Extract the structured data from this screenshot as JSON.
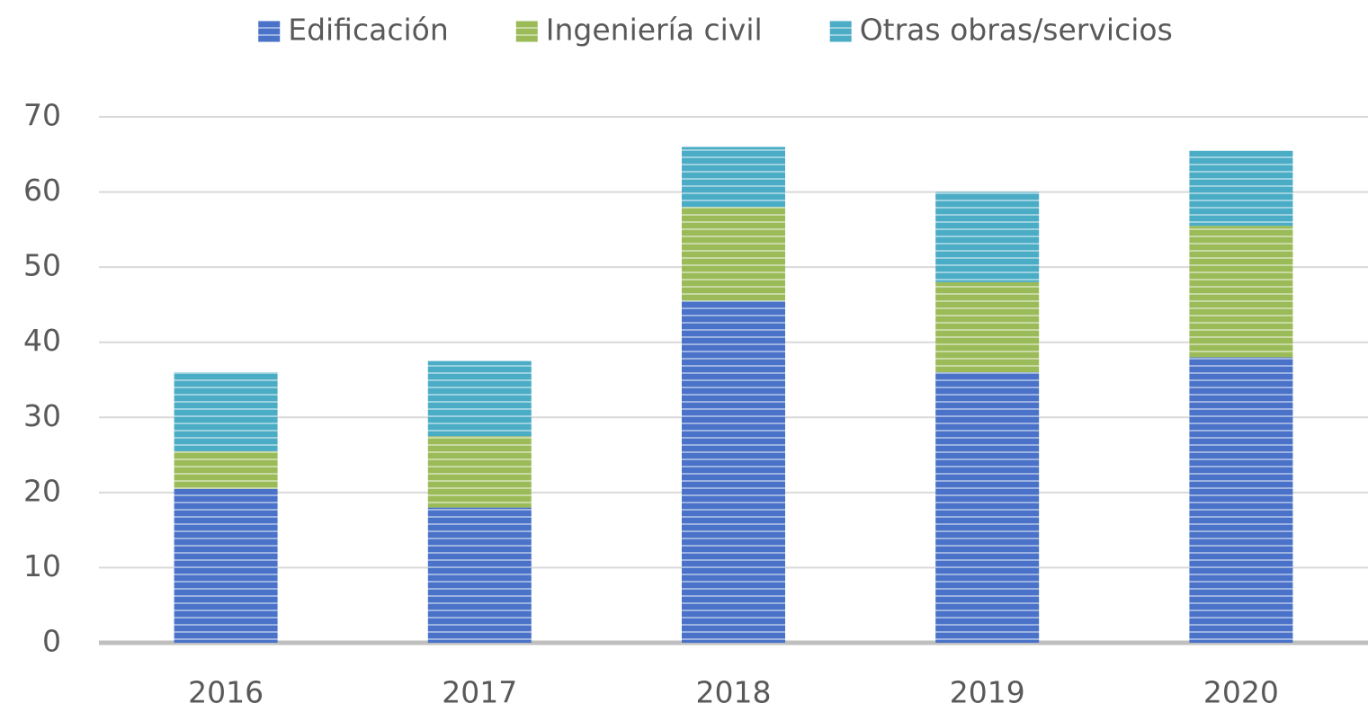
{
  "chart_data": {
    "type": "stacked_bar",
    "categories": [
      "2016",
      "2017",
      "2018",
      "2019",
      "2020"
    ],
    "series": [
      {
        "name": "Edificación",
        "color": "#4a72c8",
        "values": [
          20.5,
          18,
          45.5,
          36,
          38
        ]
      },
      {
        "name": "Ingeniería civil",
        "color": "#9bbb59",
        "values": [
          5,
          9.5,
          12.5,
          12,
          17.5
        ]
      },
      {
        "name": "Otras obras/servicios",
        "color": "#4bacc6",
        "values": [
          10.5,
          10,
          8,
          12,
          10
        ]
      }
    ],
    "ylim": [
      0,
      70
    ],
    "yticks": [
      0,
      10,
      20,
      30,
      40,
      50,
      60,
      70
    ],
    "grid": true,
    "legend": "top"
  }
}
